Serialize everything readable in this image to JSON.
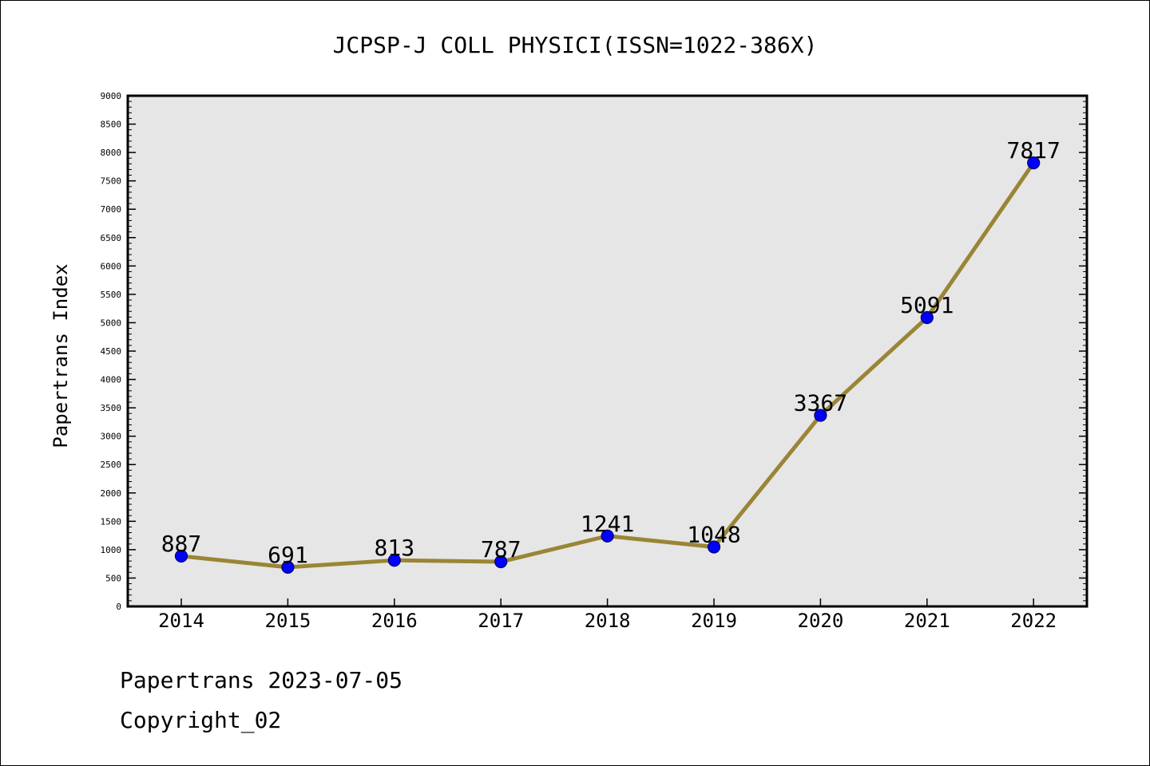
{
  "chart_data": {
    "type": "line",
    "title": "JCPSP-J COLL PHYSICI(ISSN=1022-386X)",
    "xlabel": "",
    "ylabel": "Papertrans Index",
    "categories": [
      "2014",
      "2015",
      "2016",
      "2017",
      "2018",
      "2019",
      "2020",
      "2021",
      "2022"
    ],
    "series": [
      {
        "values": [
          887,
          691,
          813,
          787,
          1241,
          1048,
          3367,
          5091,
          7817
        ]
      }
    ],
    "data_labels": [
      "887",
      "691",
      "813",
      "787",
      "1241",
      "1048",
      "3367",
      "5091",
      "7817"
    ],
    "ylim": [
      0,
      9000
    ],
    "yticks": [
      0,
      500,
      1000,
      1500,
      2000,
      2500,
      3000,
      3500,
      4000,
      4500,
      5000,
      5500,
      6000,
      6500,
      7000,
      7500,
      8000,
      8500,
      9000
    ],
    "ytick_labels": [
      "0",
      "500",
      "1000",
      "1500",
      "2000",
      "2500",
      "3000",
      "3500",
      "4000",
      "4500",
      "5000",
      "5500",
      "6000",
      "6500",
      "7000",
      "7500",
      "8000",
      "8500",
      "9000"
    ],
    "grid": false,
    "colors": {
      "line": "#9a8536",
      "marker": "#0000ff",
      "plot_bg": "#e6e6e6"
    }
  },
  "footer": {
    "line1": "Papertrans 2023-07-05",
    "line2": "Copyright_02"
  }
}
